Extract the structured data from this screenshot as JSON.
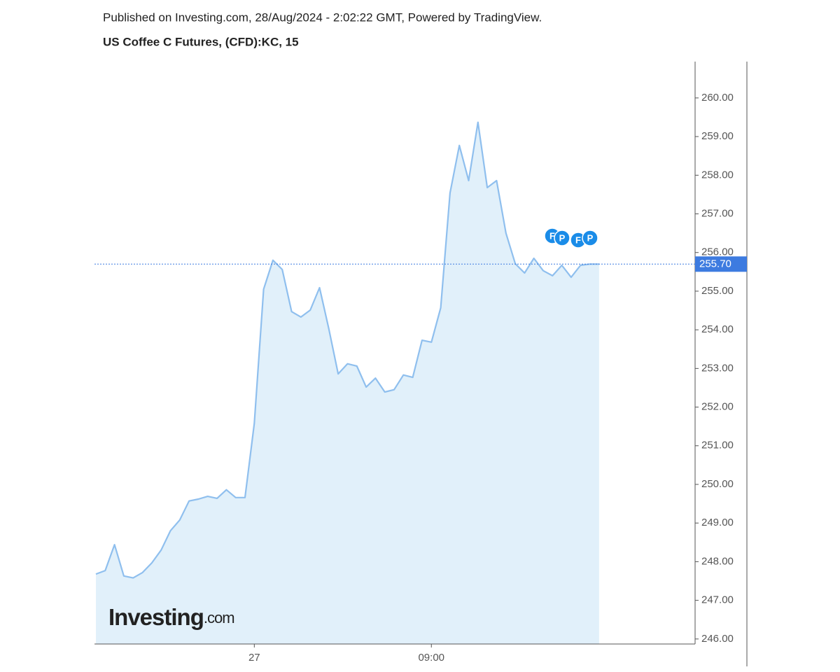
{
  "chart_data": {
    "type": "area",
    "subtitle": "Published on Investing.com, 28/Aug/2024 - 2:02:22 GMT, Powered by TradingView.",
    "title": "US Coffee C Futures, (CFD):KC, 15",
    "watermark": "Investing",
    "watermark_suffix": ".com",
    "color": "#8fbfee",
    "fill": "#e1f0fa",
    "values": [
      247.68,
      247.77,
      248.44,
      247.63,
      247.58,
      247.72,
      247.97,
      248.3,
      248.8,
      249.08,
      249.57,
      249.62,
      249.69,
      249.64,
      249.86,
      249.66,
      249.66,
      251.58,
      255.05,
      255.8,
      255.56,
      254.47,
      254.33,
      254.51,
      255.09,
      254.02,
      252.86,
      253.12,
      253.06,
      252.52,
      252.75,
      252.39,
      252.45,
      252.83,
      252.77,
      253.73,
      253.68,
      254.57,
      257.54,
      258.77,
      257.86,
      259.37,
      257.68,
      257.86,
      256.5,
      255.71,
      255.47,
      255.85,
      255.53,
      255.4,
      255.67,
      255.36,
      255.67,
      255.7,
      255.7
    ],
    "xlim": [
      -0.15,
      64.3
    ],
    "xticks": [
      {
        "value": 17,
        "label": "27"
      },
      {
        "value": 36,
        "label": "09:00"
      }
    ],
    "ylim": [
      245.87,
      260.94
    ],
    "yticks": [
      {
        "value": 246,
        "label": "246.00"
      },
      {
        "value": 247,
        "label": "247.00"
      },
      {
        "value": 248,
        "label": "248.00"
      },
      {
        "value": 249,
        "label": "249.00"
      },
      {
        "value": 250,
        "label": "250.00"
      },
      {
        "value": 251,
        "label": "251.00"
      },
      {
        "value": 252,
        "label": "252.00"
      },
      {
        "value": 253,
        "label": "253.00"
      },
      {
        "value": 254,
        "label": "254.00"
      },
      {
        "value": 255,
        "label": "255.00"
      },
      {
        "value": 256,
        "label": "256.00"
      },
      {
        "value": 257,
        "label": "257.00"
      },
      {
        "value": 258,
        "label": "258.00"
      },
      {
        "value": 259,
        "label": "259.00"
      },
      {
        "value": 260,
        "label": "260.00"
      }
    ],
    "price_line": {
      "value": 255.7,
      "label": "255.70",
      "color": "#3d7be0"
    },
    "event_markers": [
      "F",
      "P",
      "F",
      "P"
    ]
  }
}
